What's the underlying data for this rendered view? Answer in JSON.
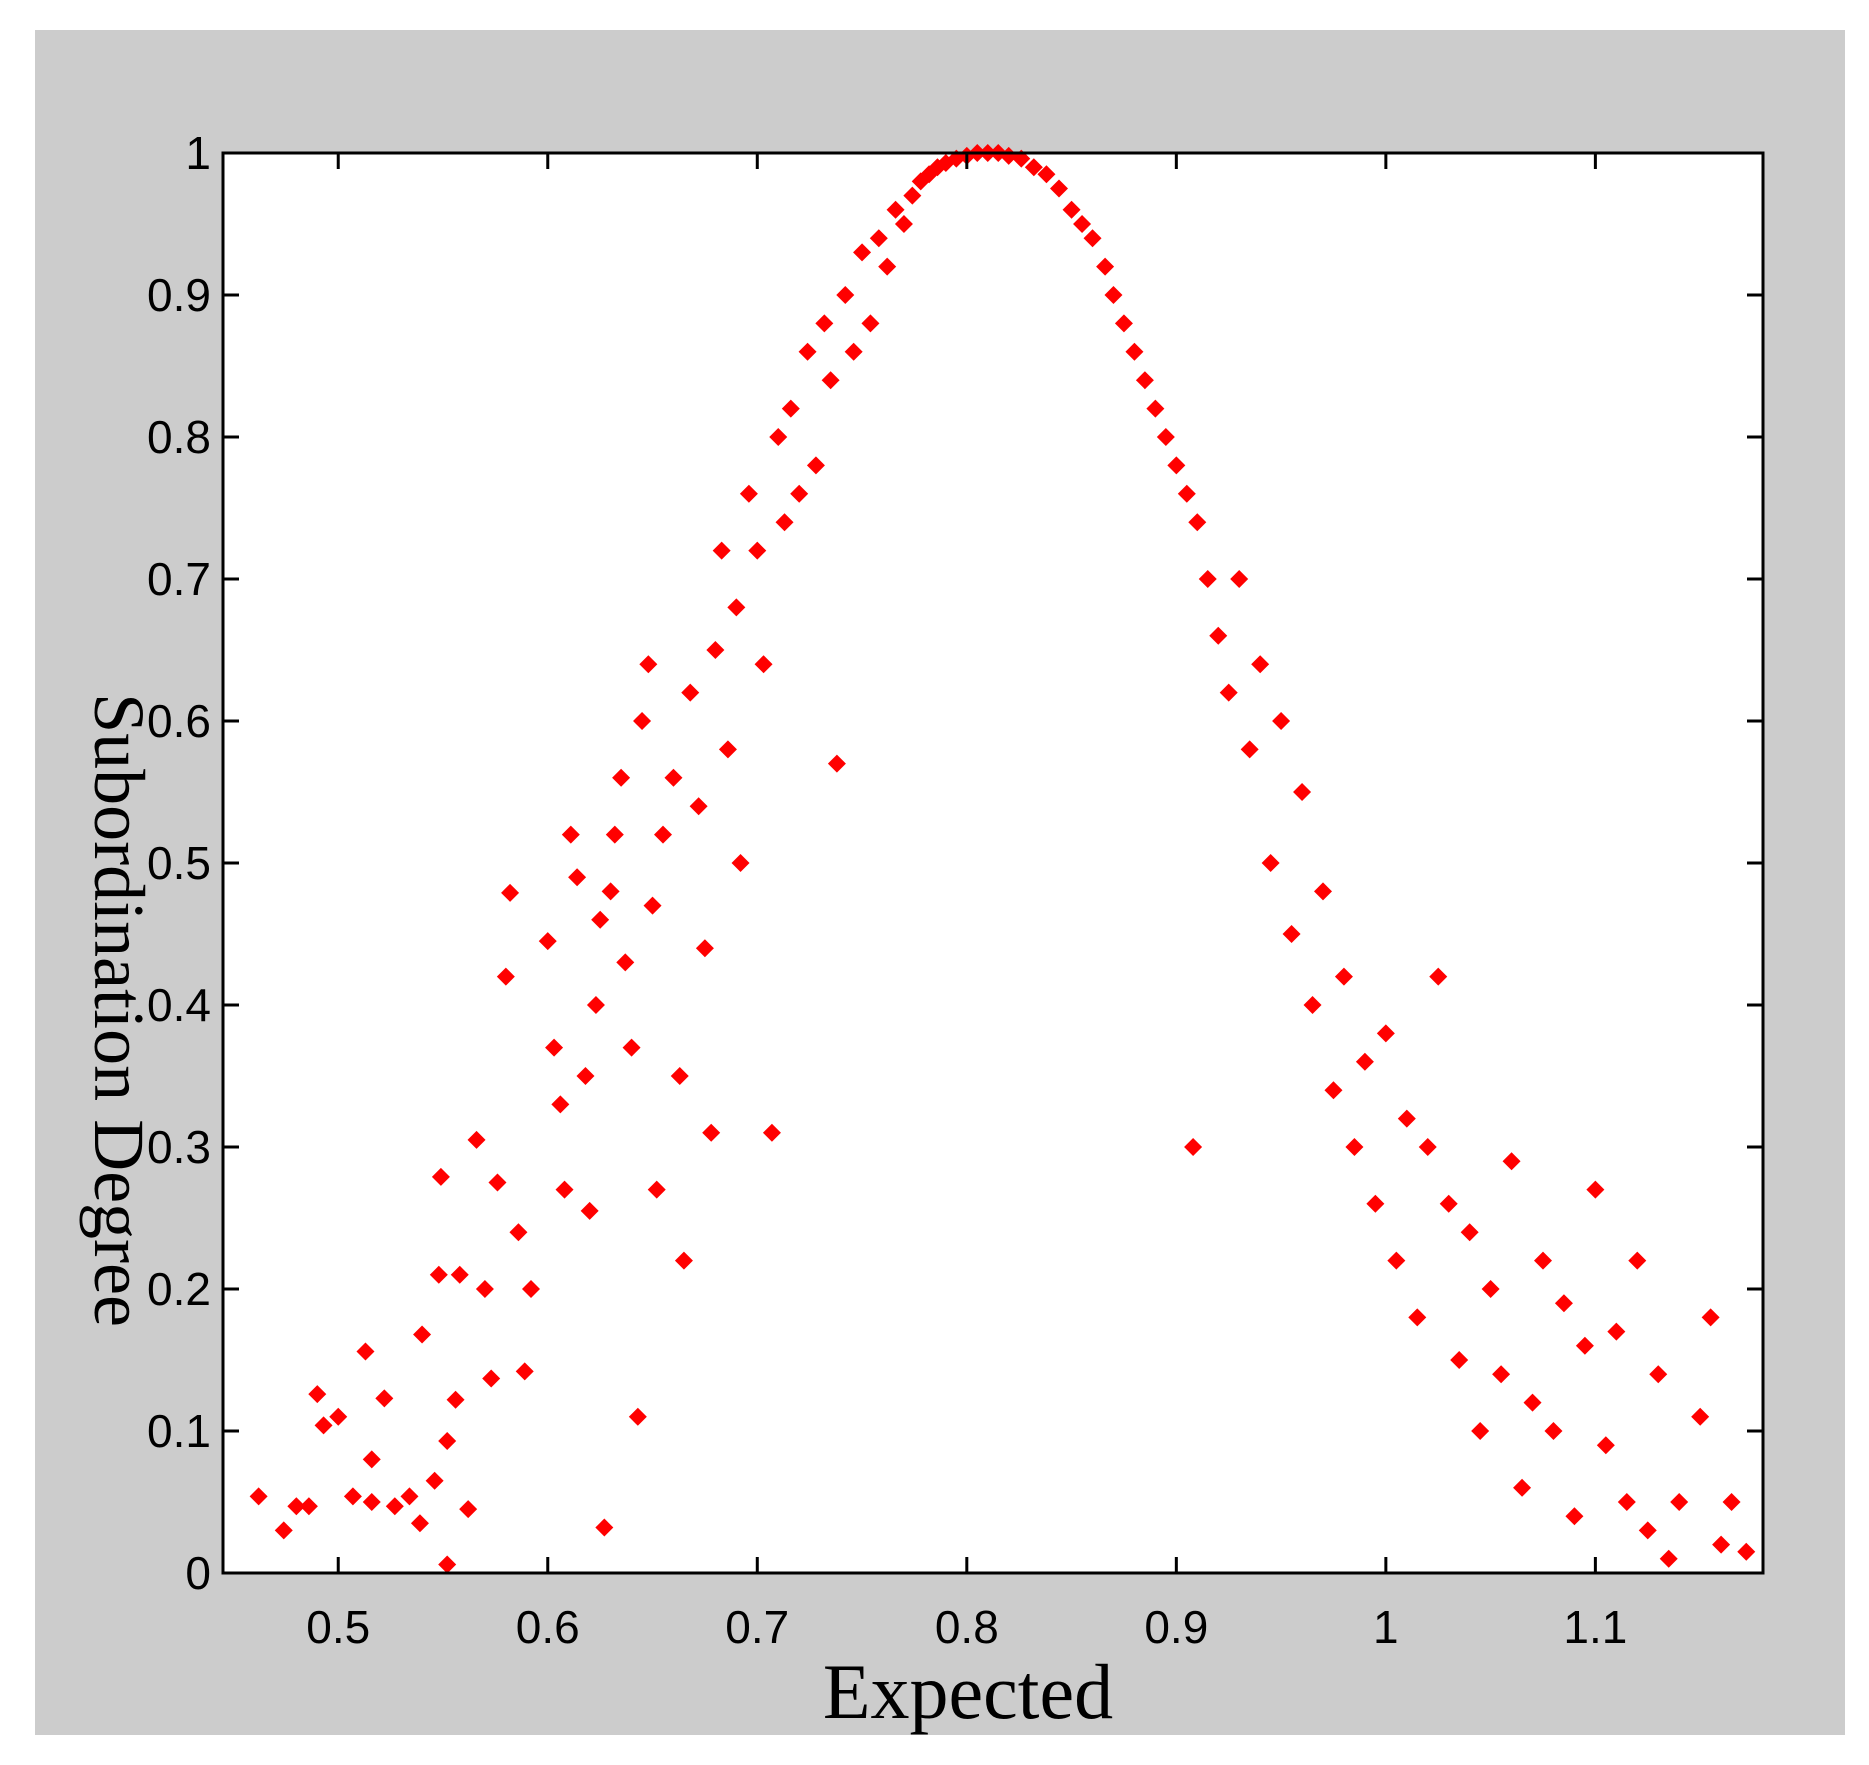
{
  "chart_data": {
    "type": "scatter",
    "xlabel": "Expected",
    "ylabel": "Subordination Degree",
    "xlim": [
      0.445,
      1.18
    ],
    "ylim": [
      0,
      1
    ],
    "x_ticks": [
      0.5,
      0.6,
      0.7,
      0.8,
      0.9,
      1.0,
      1.1
    ],
    "x_tick_labels": [
      "0.5",
      "0.6",
      "0.7",
      "0.8",
      "0.9",
      "1",
      "1.1"
    ],
    "y_ticks": [
      0,
      0.1,
      0.2,
      0.3,
      0.4,
      0.5,
      0.6,
      0.7,
      0.8,
      0.9,
      1.0
    ],
    "y_tick_labels": [
      "0",
      "0.1",
      "0.2",
      "0.3",
      "0.4",
      "0.5",
      "0.6",
      "0.7",
      "0.8",
      "0.9",
      "1"
    ],
    "grid": false,
    "marker": "diamond",
    "colors": {
      "marker": "#ff0000",
      "frame_bg": "#cccccc",
      "axes_bg": "#ffffff"
    },
    "series": [
      {
        "values": [
          [
            0.462,
            0.054
          ],
          [
            0.474,
            0.03
          ],
          [
            0.48,
            0.047
          ],
          [
            0.486,
            0.047
          ],
          [
            0.49,
            0.126
          ],
          [
            0.493,
            0.104
          ],
          [
            0.5,
            0.11
          ],
          [
            0.507,
            0.054
          ],
          [
            0.513,
            0.156
          ],
          [
            0.516,
            0.08
          ],
          [
            0.516,
            0.05
          ],
          [
            0.522,
            0.123
          ],
          [
            0.527,
            0.047
          ],
          [
            0.534,
            0.054
          ],
          [
            0.539,
            0.035
          ],
          [
            0.54,
            0.168
          ],
          [
            0.546,
            0.065
          ],
          [
            0.548,
            0.21
          ],
          [
            0.552,
            0.093
          ],
          [
            0.552,
            0.006
          ],
          [
            0.556,
            0.122
          ],
          [
            0.558,
            0.21
          ],
          [
            0.562,
            0.045
          ],
          [
            0.566,
            0.305
          ],
          [
            0.57,
            0.2
          ],
          [
            0.573,
            0.137
          ],
          [
            0.576,
            0.275
          ],
          [
            0.58,
            0.42
          ],
          [
            0.582,
            0.479
          ],
          [
            0.586,
            0.24
          ],
          [
            0.589,
            0.142
          ],
          [
            0.592,
            0.2
          ],
          [
            0.549,
            0.279
          ],
          [
            0.6,
            0.445
          ],
          [
            0.603,
            0.37
          ],
          [
            0.606,
            0.33
          ],
          [
            0.608,
            0.27
          ],
          [
            0.611,
            0.52
          ],
          [
            0.614,
            0.49
          ],
          [
            0.618,
            0.35
          ],
          [
            0.62,
            0.255
          ],
          [
            0.623,
            0.4
          ],
          [
            0.625,
            0.46
          ],
          [
            0.627,
            0.032
          ],
          [
            0.63,
            0.48
          ],
          [
            0.632,
            0.52
          ],
          [
            0.635,
            0.56
          ],
          [
            0.637,
            0.43
          ],
          [
            0.64,
            0.37
          ],
          [
            0.643,
            0.11
          ],
          [
            0.645,
            0.6
          ],
          [
            0.648,
            0.64
          ],
          [
            0.65,
            0.47
          ],
          [
            0.652,
            0.27
          ],
          [
            0.655,
            0.52
          ],
          [
            0.66,
            0.56
          ],
          [
            0.663,
            0.35
          ],
          [
            0.665,
            0.22
          ],
          [
            0.668,
            0.62
          ],
          [
            0.672,
            0.54
          ],
          [
            0.675,
            0.44
          ],
          [
            0.678,
            0.31
          ],
          [
            0.68,
            0.65
          ],
          [
            0.683,
            0.72
          ],
          [
            0.686,
            0.58
          ],
          [
            0.69,
            0.68
          ],
          [
            0.692,
            0.5
          ],
          [
            0.696,
            0.76
          ],
          [
            0.7,
            0.72
          ],
          [
            0.703,
            0.64
          ],
          [
            0.707,
            0.31
          ],
          [
            0.71,
            0.8
          ],
          [
            0.713,
            0.74
          ],
          [
            0.716,
            0.82
          ],
          [
            0.72,
            0.76
          ],
          [
            0.724,
            0.86
          ],
          [
            0.728,
            0.78
          ],
          [
            0.732,
            0.88
          ],
          [
            0.735,
            0.84
          ],
          [
            0.738,
            0.57
          ],
          [
            0.742,
            0.9
          ],
          [
            0.746,
            0.86
          ],
          [
            0.75,
            0.93
          ],
          [
            0.754,
            0.88
          ],
          [
            0.758,
            0.94
          ],
          [
            0.762,
            0.92
          ],
          [
            0.766,
            0.96
          ],
          [
            0.77,
            0.95
          ],
          [
            0.774,
            0.97
          ],
          [
            0.778,
            0.98
          ],
          [
            0.782,
            0.985
          ],
          [
            0.786,
            0.99
          ],
          [
            0.79,
            0.993
          ],
          [
            0.795,
            0.996
          ],
          [
            0.8,
            0.998
          ],
          [
            0.805,
            1.0
          ],
          [
            0.81,
            1.0
          ],
          [
            0.815,
            1.0
          ],
          [
            0.82,
            0.998
          ],
          [
            0.826,
            0.996
          ],
          [
            0.832,
            0.99
          ],
          [
            0.838,
            0.985
          ],
          [
            0.844,
            0.975
          ],
          [
            0.85,
            0.96
          ],
          [
            0.855,
            0.95
          ],
          [
            0.86,
            0.94
          ],
          [
            0.866,
            0.92
          ],
          [
            0.87,
            0.9
          ],
          [
            0.875,
            0.88
          ],
          [
            0.88,
            0.86
          ],
          [
            0.885,
            0.84
          ],
          [
            0.89,
            0.82
          ],
          [
            0.895,
            0.8
          ],
          [
            0.9,
            0.78
          ],
          [
            0.905,
            0.76
          ],
          [
            0.908,
            0.3
          ],
          [
            0.91,
            0.74
          ],
          [
            0.915,
            0.7
          ],
          [
            0.92,
            0.66
          ],
          [
            0.925,
            0.62
          ],
          [
            0.93,
            0.7
          ],
          [
            0.935,
            0.58
          ],
          [
            0.94,
            0.64
          ],
          [
            0.945,
            0.5
          ],
          [
            0.95,
            0.6
          ],
          [
            0.955,
            0.45
          ],
          [
            0.96,
            0.55
          ],
          [
            0.965,
            0.4
          ],
          [
            0.97,
            0.48
          ],
          [
            0.975,
            0.34
          ],
          [
            0.98,
            0.42
          ],
          [
            0.985,
            0.3
          ],
          [
            0.99,
            0.36
          ],
          [
            0.995,
            0.26
          ],
          [
            1.0,
            0.38
          ],
          [
            1.005,
            0.22
          ],
          [
            1.01,
            0.32
          ],
          [
            1.015,
            0.18
          ],
          [
            1.02,
            0.3
          ],
          [
            1.025,
            0.42
          ],
          [
            1.03,
            0.26
          ],
          [
            1.035,
            0.15
          ],
          [
            1.04,
            0.24
          ],
          [
            1.045,
            0.1
          ],
          [
            1.05,
            0.2
          ],
          [
            1.055,
            0.14
          ],
          [
            1.06,
            0.29
          ],
          [
            1.065,
            0.06
          ],
          [
            1.07,
            0.12
          ],
          [
            1.075,
            0.22
          ],
          [
            1.08,
            0.1
          ],
          [
            1.085,
            0.19
          ],
          [
            1.09,
            0.04
          ],
          [
            1.095,
            0.16
          ],
          [
            1.1,
            0.27
          ],
          [
            1.105,
            0.09
          ],
          [
            1.11,
            0.17
          ],
          [
            1.115,
            0.05
          ],
          [
            1.12,
            0.22
          ],
          [
            1.125,
            0.03
          ],
          [
            1.13,
            0.14
          ],
          [
            1.135,
            0.01
          ],
          [
            1.14,
            0.05
          ],
          [
            1.15,
            0.11
          ],
          [
            1.155,
            0.18
          ],
          [
            1.16,
            0.02
          ],
          [
            1.165,
            0.05
          ],
          [
            1.172,
            0.015
          ]
        ]
      }
    ]
  }
}
